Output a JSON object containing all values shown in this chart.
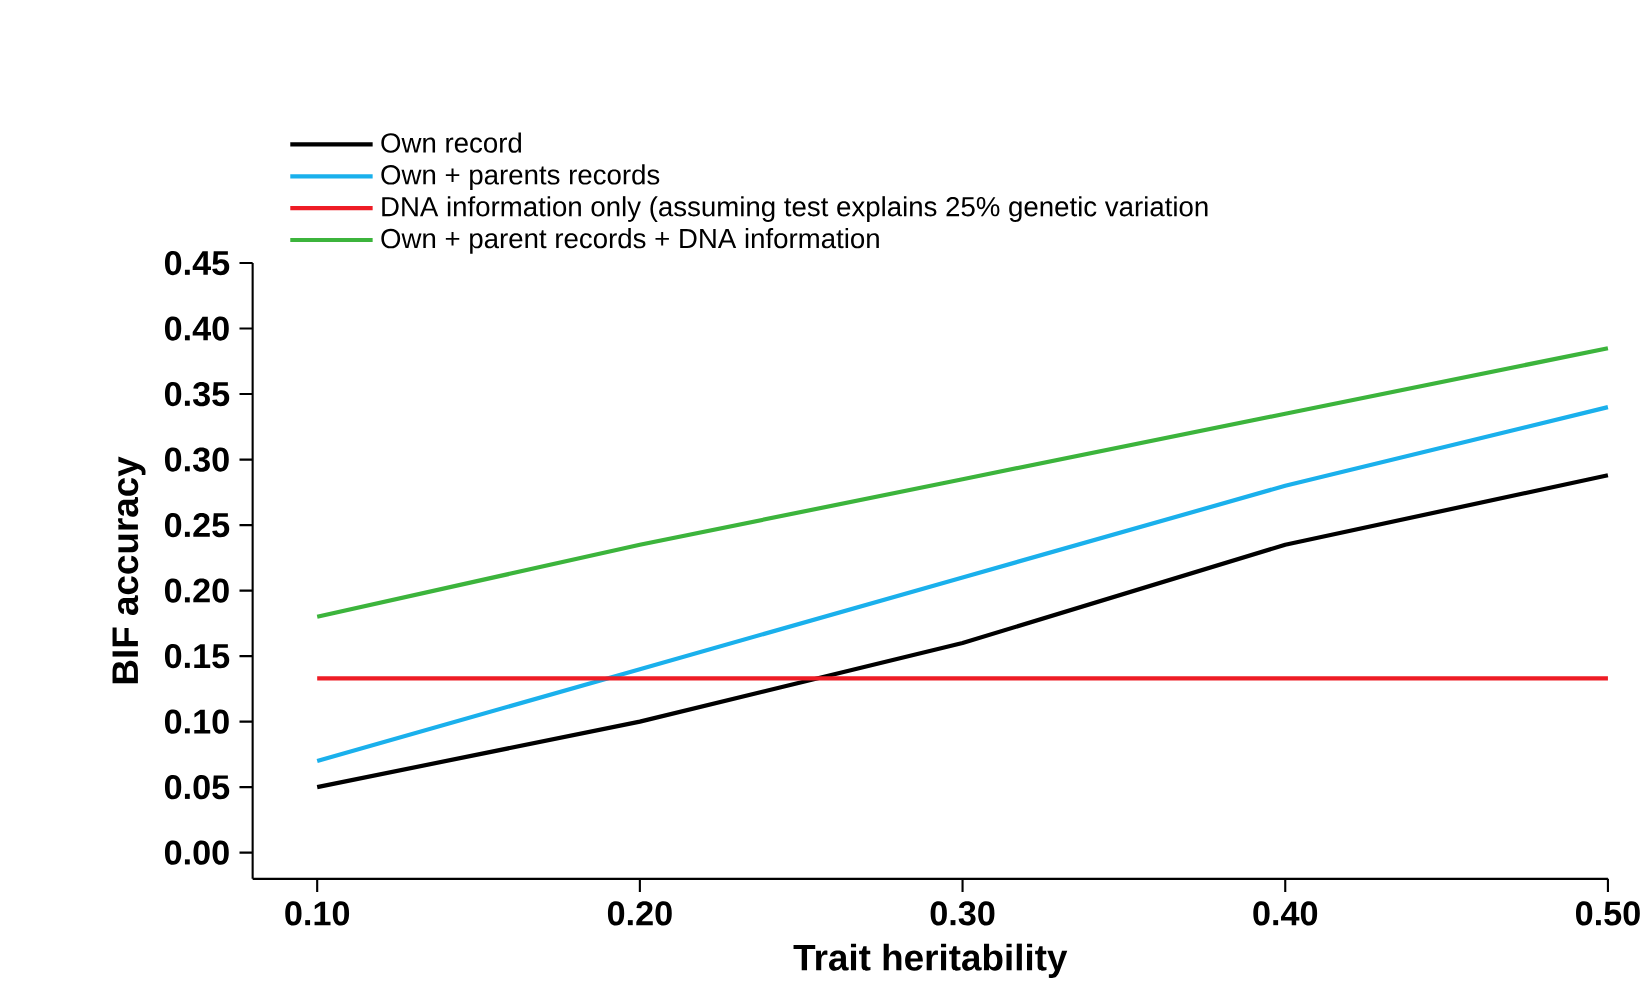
{
  "chart_data": {
    "type": "line",
    "xlabel": "Trait heritability",
    "ylabel": "BIF accuracy",
    "x": [
      0.1,
      0.2,
      0.3,
      0.4,
      0.5
    ],
    "series": [
      {
        "name": "Own record",
        "color": "#000000",
        "values": [
          0.05,
          0.1,
          0.16,
          0.235,
          0.288
        ]
      },
      {
        "name": "Own + parents records",
        "color": "#1ab0ec",
        "values": [
          0.07,
          0.14,
          0.21,
          0.28,
          0.34
        ]
      },
      {
        "name": "DNA information only (assuming test explains 25% genetic variation",
        "color": "#ee1c25",
        "values": [
          0.133,
          0.133,
          0.133,
          0.133,
          0.133
        ]
      },
      {
        "name": "Own + parent records + DNA information",
        "color": "#3cb43c",
        "values": [
          0.18,
          0.235,
          0.285,
          0.335,
          0.385
        ]
      }
    ],
    "xlim": [
      0.08,
      0.5
    ],
    "ylim": [
      -0.02,
      0.45
    ],
    "xticks": [
      {
        "value": 0.1,
        "label": "0.10"
      },
      {
        "value": 0.2,
        "label": "0.20"
      },
      {
        "value": 0.3,
        "label": "0.30"
      },
      {
        "value": 0.4,
        "label": "0.40"
      },
      {
        "value": 0.5,
        "label": "0.50"
      }
    ],
    "yticks": [
      {
        "value": 0,
        "label": "0.00"
      },
      {
        "value": 0.05,
        "label": "0.05"
      },
      {
        "value": 0.1,
        "label": "0.10"
      },
      {
        "value": 0.15,
        "label": "0.15"
      },
      {
        "value": 0.2,
        "label": "0.20"
      },
      {
        "value": 0.25,
        "label": "0.25"
      },
      {
        "value": 0.3,
        "label": "0.30"
      },
      {
        "value": 0.35,
        "label": "0.35"
      },
      {
        "value": 0.4,
        "label": "0.40"
      },
      {
        "value": 0.45,
        "label": "0.45"
      }
    ],
    "legend": "top left",
    "grid": false,
    "marker": "none",
    "line_style": "solid"
  }
}
